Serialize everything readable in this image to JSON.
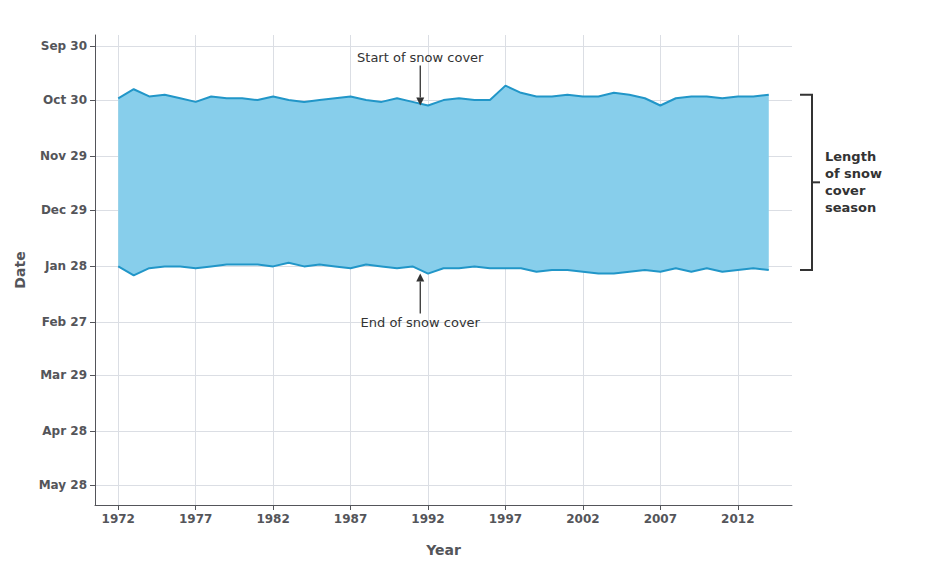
{
  "chart_data": {
    "type": "band",
    "x": [
      1972,
      1973,
      1974,
      1975,
      1976,
      1977,
      1978,
      1979,
      1980,
      1981,
      1982,
      1983,
      1984,
      1985,
      1986,
      1987,
      1988,
      1989,
      1990,
      1991,
      1992,
      1993,
      1994,
      1995,
      1996,
      1997,
      1998,
      1999,
      2000,
      2001,
      2002,
      2003,
      2004,
      2005,
      2006,
      2007,
      2008,
      2009,
      2010,
      2011,
      2012,
      2013,
      2014
    ],
    "series": [
      {
        "color": "#2196C8",
        "values": [
          25,
          20,
          24,
          23,
          25,
          27,
          24,
          25,
          25,
          26,
          24,
          26,
          27,
          26,
          25,
          24,
          26,
          27,
          25,
          27,
          29,
          26,
          25,
          26,
          26,
          18,
          22,
          24,
          24,
          23,
          24,
          24,
          22,
          23,
          25,
          29,
          25,
          24,
          24,
          25,
          24,
          24,
          23
        ]
      },
      {
        "color": "#2196C8",
        "values": [
          118,
          123,
          119,
          118,
          118,
          119,
          118,
          117,
          117,
          117,
          118,
          116,
          118,
          117,
          118,
          119,
          117,
          118,
          119,
          118,
          122,
          119,
          119,
          118,
          119,
          119,
          119,
          121,
          120,
          120,
          121,
          122,
          122,
          121,
          120,
          121,
          119,
          121,
          119,
          121,
          120,
          119,
          120
        ]
      }
    ],
    "color": "#87CEEB",
    "xlabel": "Year",
    "ylabel": "Date",
    "xlim": [
      1970.5,
      2015.5
    ],
    "ylim": [
      -10,
      250
    ],
    "xticks": [
      1972,
      1977,
      1982,
      1987,
      1992,
      1997,
      2002,
      2007,
      2012
    ],
    "yticks": [
      {
        "value": -4,
        "label": "Sep 30"
      },
      {
        "value": 26,
        "label": "Oct 30"
      },
      {
        "value": 57,
        "label": "Nov 29"
      },
      {
        "value": 87,
        "label": "Dec 29"
      },
      {
        "value": 118,
        "label": "Jan 28"
      },
      {
        "value": 149,
        "label": "Feb 27"
      },
      {
        "value": 178,
        "label": "Mar 29"
      },
      {
        "value": 209,
        "label": "Apr 28"
      },
      {
        "value": 239,
        "label": "May 28"
      }
    ],
    "grid": true,
    "annotations": [
      {
        "text": "Start of snow cover",
        "x": 1991.5,
        "y": 29
      },
      {
        "text": "End of snow cover",
        "x": 1991.5,
        "y": 122
      },
      {
        "text": "Length\nof snow\ncover\nseason",
        "y": [
          23,
          120
        ]
      }
    ]
  }
}
